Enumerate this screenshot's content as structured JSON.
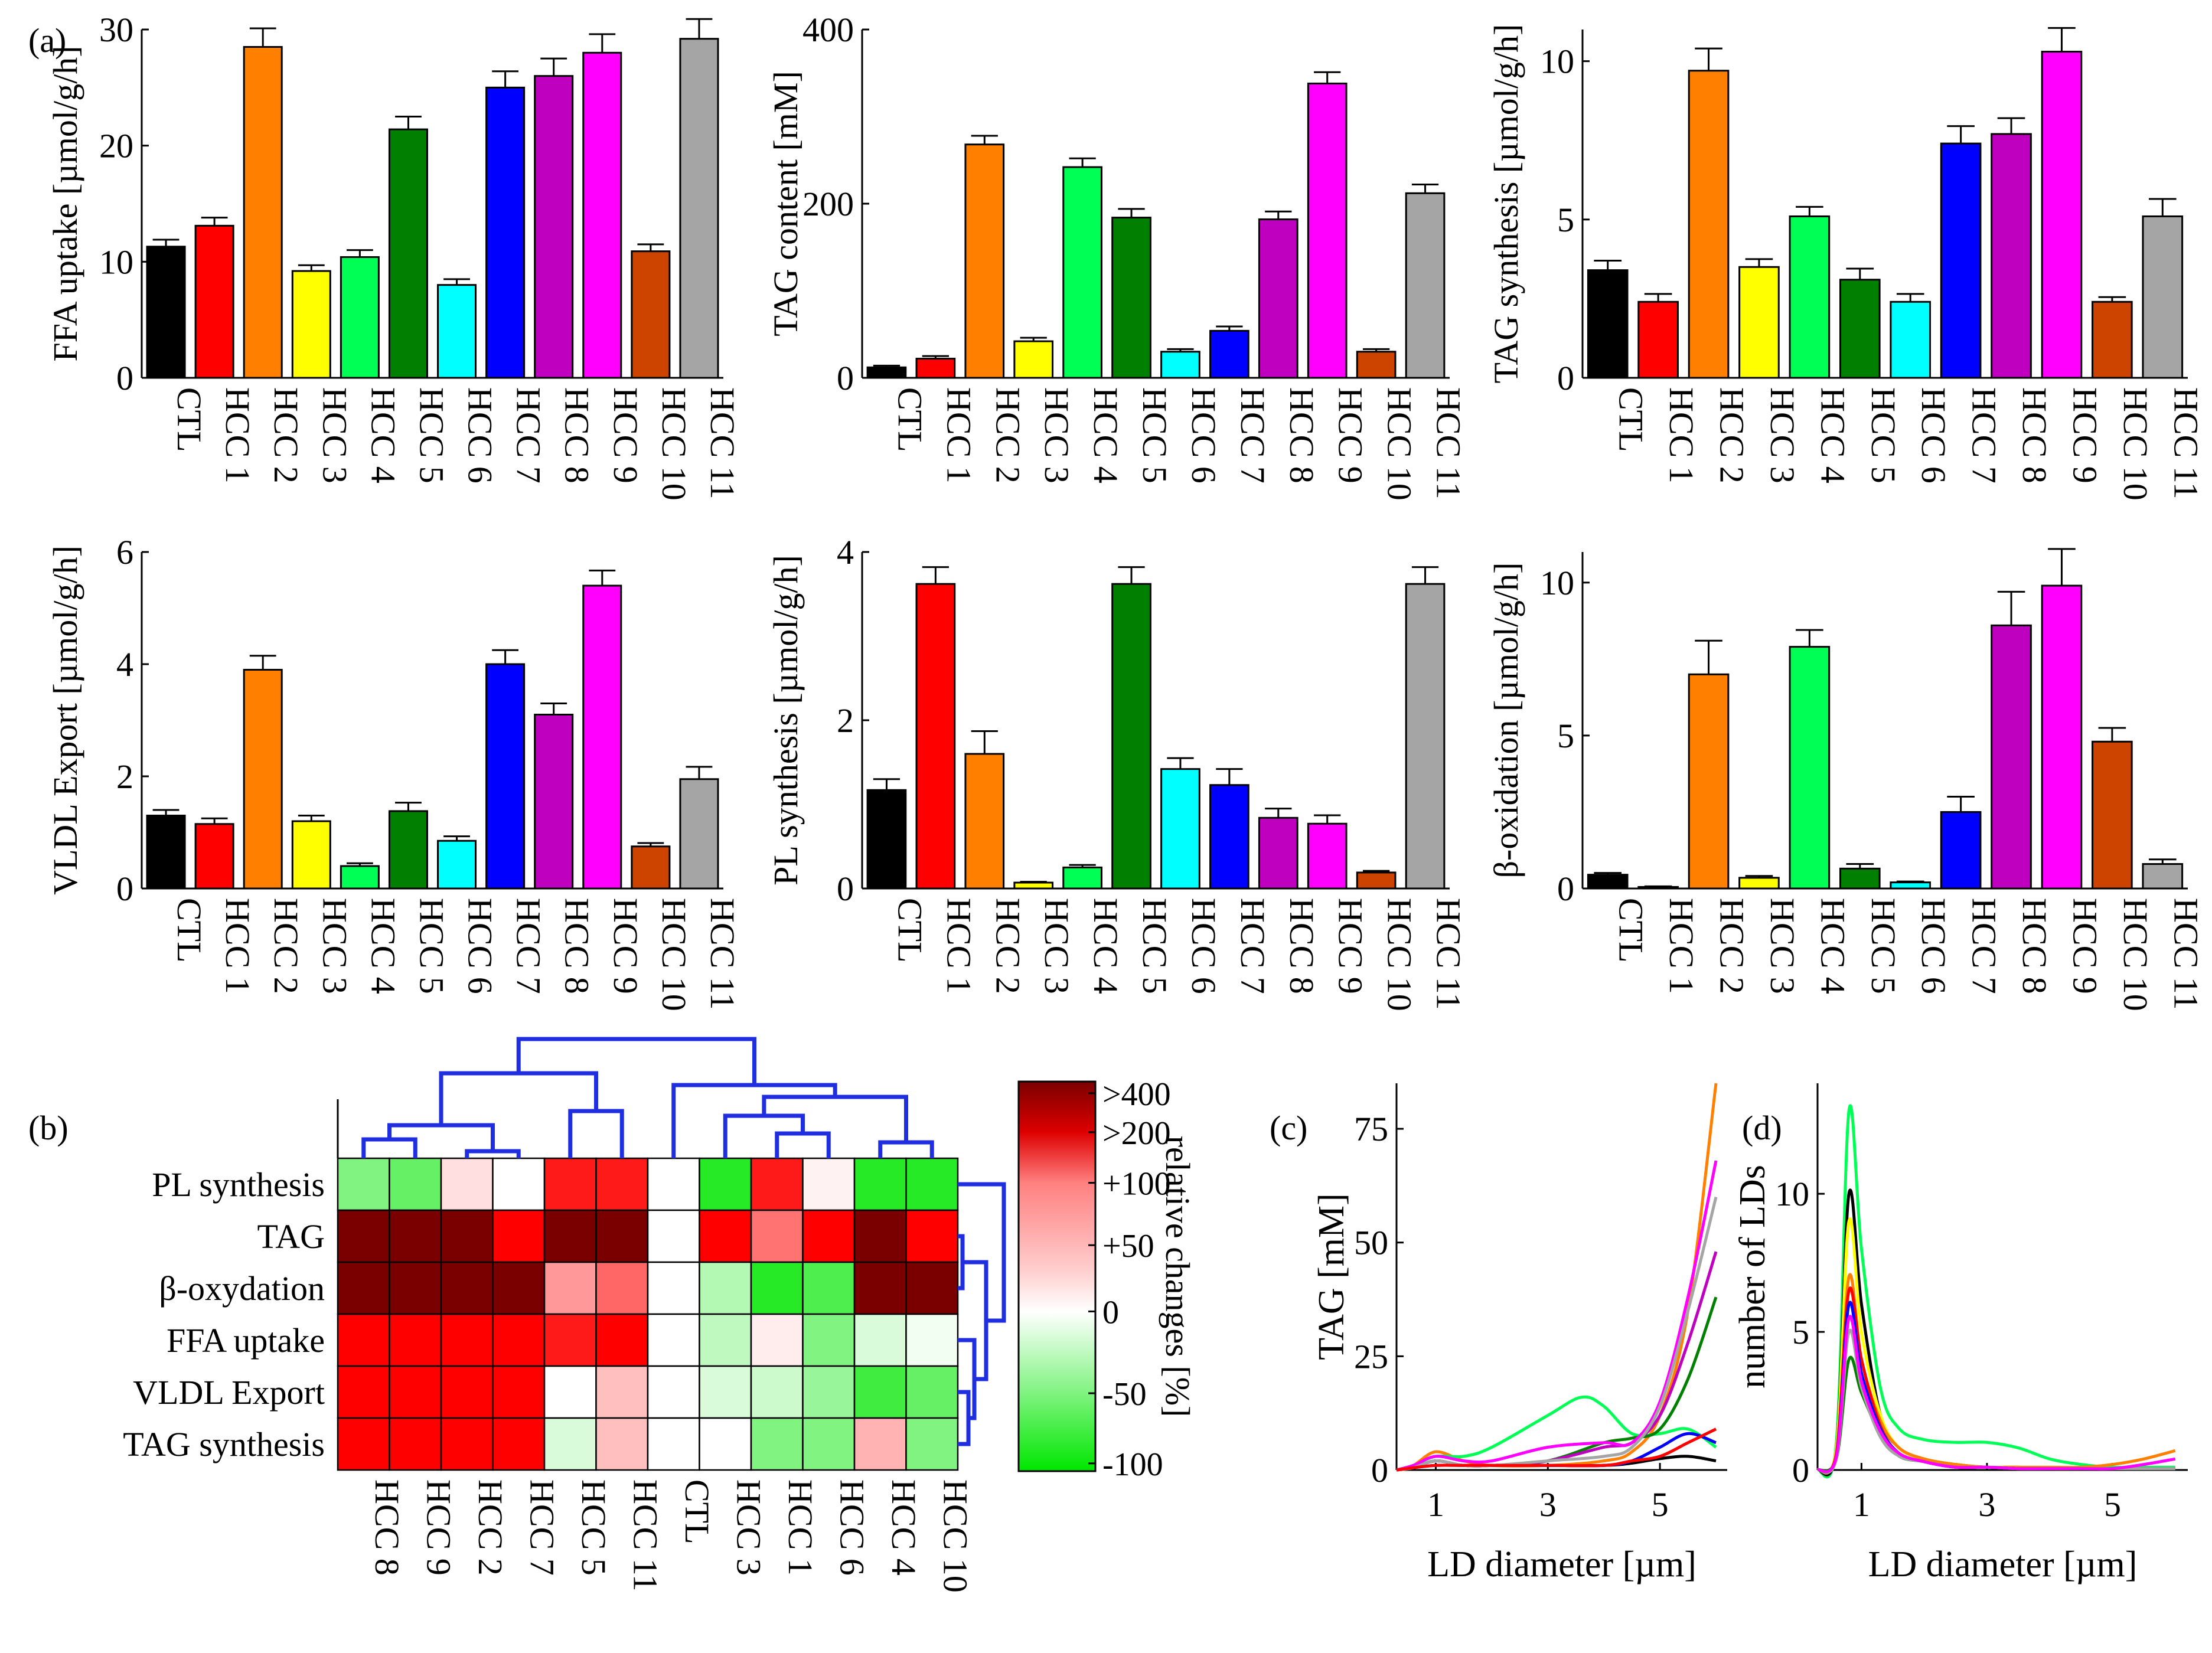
{
  "panel_labels": {
    "a": "(a)",
    "b": "(b)",
    "c": "(c)",
    "d": "(d)"
  },
  "colors": {
    "CTL": "#000000",
    "HCC 1": "#ff0000",
    "HCC 2": "#ff7f00",
    "HCC 3": "#ffff00",
    "HCC 4": "#00ff55",
    "HCC 5": "#007f00",
    "HCC 6": "#00ffff",
    "HCC 7": "#0000ff",
    "HCC 8": "#bf00bf",
    "HCC 9": "#ff00ff",
    "HCC 10": "#cc4400",
    "HCC 11": "#a5a5a5"
  },
  "chart_data": [
    {
      "id": "a1",
      "type": "bar",
      "ylabel": "FFA uptake [µmol/g/h]",
      "categories": [
        "CTL",
        "HCC 1",
        "HCC 2",
        "HCC 3",
        "HCC 4",
        "HCC 5",
        "HCC 6",
        "HCC 7",
        "HCC 8",
        "HCC 9",
        "HCC 10",
        "HCC 11"
      ],
      "values": [
        11.3,
        13.1,
        28.5,
        9.2,
        10.4,
        21.4,
        8.0,
        25.0,
        26.0,
        28.0,
        10.9,
        29.2
      ],
      "errors": [
        0.6,
        0.7,
        1.6,
        0.5,
        0.6,
        1.1,
        0.5,
        1.4,
        1.5,
        1.6,
        0.6,
        1.7
      ],
      "ylim": [
        0,
        30
      ],
      "yticks": [
        0,
        10,
        20,
        30
      ]
    },
    {
      "id": "a2",
      "type": "bar",
      "ylabel": "TAG content [mM]",
      "categories": [
        "CTL",
        "HCC 1",
        "HCC 2",
        "HCC 3",
        "HCC 4",
        "HCC 5",
        "HCC 6",
        "HCC 7",
        "HCC 8",
        "HCC 9",
        "HCC 10",
        "HCC 11"
      ],
      "values": [
        12,
        22,
        268,
        42,
        242,
        184,
        30,
        54,
        182,
        338,
        30,
        212
      ],
      "errors": [
        2,
        3,
        10,
        4,
        10,
        10,
        3,
        5,
        9,
        13,
        3,
        10
      ],
      "ylim": [
        0,
        400
      ],
      "yticks": [
        0,
        200,
        400
      ]
    },
    {
      "id": "a3",
      "type": "bar",
      "ylabel": "TAG synthesis [µmol/g/h]",
      "categories": [
        "CTL",
        "HCC 1",
        "HCC 2",
        "HCC 3",
        "HCC 4",
        "HCC 5",
        "HCC 6",
        "HCC 7",
        "HCC 8",
        "HCC 9",
        "HCC 10",
        "HCC 11"
      ],
      "values": [
        3.4,
        2.4,
        9.7,
        3.5,
        5.1,
        3.1,
        2.4,
        7.4,
        7.7,
        10.3,
        2.4,
        5.1
      ],
      "errors": [
        0.3,
        0.25,
        0.7,
        0.25,
        0.3,
        0.35,
        0.25,
        0.55,
        0.5,
        0.75,
        0.15,
        0.55
      ],
      "ylim": [
        0,
        11
      ],
      "yticks": [
        0,
        5,
        10
      ]
    },
    {
      "id": "a4",
      "type": "bar",
      "ylabel": "VLDL Export [µmol/g/h]",
      "categories": [
        "CTL",
        "HCC 1",
        "HCC 2",
        "HCC 3",
        "HCC 4",
        "HCC 5",
        "HCC 6",
        "HCC 7",
        "HCC 8",
        "HCC 9",
        "HCC 10",
        "HCC 11"
      ],
      "values": [
        1.3,
        1.15,
        3.9,
        1.2,
        0.4,
        1.38,
        0.85,
        4.0,
        3.1,
        5.4,
        0.75,
        1.95
      ],
      "errors": [
        0.1,
        0.1,
        0.25,
        0.1,
        0.05,
        0.15,
        0.08,
        0.25,
        0.2,
        0.27,
        0.06,
        0.22
      ],
      "ylim": [
        0,
        6
      ],
      "yticks": [
        0,
        2,
        4,
        6
      ]
    },
    {
      "id": "a5",
      "type": "bar",
      "ylabel": "PL synthesis [µmol/g/h]",
      "categories": [
        "CTL",
        "HCC 1",
        "HCC 2",
        "HCC 3",
        "HCC 4",
        "HCC 5",
        "HCC 6",
        "HCC 7",
        "HCC 8",
        "HCC 9",
        "HCC 10",
        "HCC 11"
      ],
      "values": [
        1.17,
        3.62,
        1.6,
        0.07,
        0.25,
        3.62,
        1.42,
        1.23,
        0.84,
        0.77,
        0.19,
        3.62
      ],
      "errors": [
        0.13,
        0.2,
        0.27,
        0.01,
        0.03,
        0.2,
        0.13,
        0.19,
        0.11,
        0.1,
        0.02,
        0.2
      ],
      "ylim": [
        0,
        4
      ],
      "yticks": [
        0,
        2,
        4
      ]
    },
    {
      "id": "a6",
      "type": "bar",
      "ylabel": "β-oxidation [µmol/g/h]",
      "categories": [
        "CTL",
        "HCC 1",
        "HCC 2",
        "HCC 3",
        "HCC 4",
        "HCC 5",
        "HCC 6",
        "HCC 7",
        "HCC 8",
        "HCC 9",
        "HCC 10",
        "HCC 11"
      ],
      "values": [
        0.45,
        0.05,
        7.0,
        0.35,
        7.9,
        0.65,
        0.2,
        2.5,
        8.6,
        9.9,
        4.8,
        0.8
      ],
      "errors": [
        0.06,
        0.02,
        1.1,
        0.06,
        0.55,
        0.15,
        0.03,
        0.5,
        1.1,
        1.2,
        0.45,
        0.15
      ],
      "ylim": [
        0,
        11
      ],
      "yticks": [
        0,
        5,
        10
      ]
    },
    {
      "id": "b",
      "type": "heatmap",
      "rows": [
        "PL synthesis",
        "TAG",
        "β-oxydation",
        "FFA uptake",
        "VLDL Export",
        "TAG synthesis"
      ],
      "columns": [
        "HCC 8",
        "HCC 9",
        "HCC 2",
        "HCC 7",
        "HCC 5",
        "HCC 11",
        "CTL",
        "HCC 3",
        "HCC 1",
        "HCC 6",
        "HCC 4",
        "HCC 10"
      ],
      "values_percent_change": [
        [
          -50,
          -60,
          25,
          0,
          180,
          180,
          0,
          -85,
          180,
          10,
          -85,
          -85
        ],
        [
          400,
          400,
          400,
          200,
          400,
          400,
          0,
          200,
          110,
          200,
          400,
          200
        ],
        [
          400,
          400,
          400,
          400,
          80,
          120,
          0,
          -30,
          -85,
          -70,
          400,
          400
        ],
        [
          200,
          200,
          200,
          200,
          180,
          200,
          0,
          -25,
          15,
          -50,
          -15,
          -5
        ],
        [
          200,
          200,
          200,
          200,
          0,
          50,
          0,
          -15,
          -20,
          -40,
          -75,
          -60
        ],
        [
          200,
          200,
          200,
          200,
          -15,
          50,
          0,
          0,
          -50,
          -50,
          60,
          -50
        ]
      ],
      "colorbar": {
        "label": "relative changes [%]",
        "ticks": [
          ">400",
          ">200",
          "+100",
          "+50",
          "0",
          "-50",
          "-100"
        ],
        "low_color": "#00e600",
        "mid_color": "#ffffff",
        "high_color": "#7a0000"
      }
    },
    {
      "id": "c",
      "type": "line",
      "xlabel": "LD diameter [µm]",
      "ylabel": "TAG [mM]",
      "xlim": [
        0.3,
        6.2
      ],
      "ylim": [
        0,
        85
      ],
      "xticks": [
        1,
        3,
        5
      ],
      "yticks": [
        0,
        25,
        50,
        75
      ],
      "series": [
        {
          "name": "CTL",
          "color": "#000000",
          "x": [
            0.3,
            0.6,
            1,
            1.5,
            2,
            3,
            4,
            4.5,
            5,
            5.5,
            6
          ],
          "y": [
            0,
            0.5,
            2,
            1,
            1,
            1,
            1,
            1.5,
            2.5,
            3,
            2
          ]
        },
        {
          "name": "HCC 2",
          "color": "#ff7f00",
          "x": [
            0.3,
            0.6,
            1,
            1.5,
            2,
            3,
            4,
            4.5,
            5,
            5.5,
            6
          ],
          "y": [
            0,
            1,
            4,
            2,
            1,
            1,
            2,
            4,
            12,
            35,
            85
          ]
        },
        {
          "name": "HCC 4",
          "color": "#00ff55",
          "x": [
            0.3,
            0.6,
            1,
            1.5,
            2,
            3,
            3.6,
            4,
            4.5,
            5,
            5.5,
            6
          ],
          "y": [
            0,
            1,
            3,
            3,
            5,
            12,
            16,
            14,
            8,
            8,
            9,
            5
          ]
        },
        {
          "name": "HCC 5",
          "color": "#007f00",
          "x": [
            0.3,
            0.6,
            1,
            1.5,
            2,
            3,
            4,
            4.5,
            5,
            5.5,
            6
          ],
          "y": [
            0,
            0.5,
            2,
            1,
            1,
            2,
            6,
            7,
            9,
            20,
            38
          ]
        },
        {
          "name": "HCC 7",
          "color": "#0000ff",
          "x": [
            0.3,
            0.6,
            1,
            1.5,
            2,
            3,
            4,
            4.5,
            5,
            5.5,
            6
          ],
          "y": [
            0,
            0.5,
            1,
            1,
            1,
            1,
            1,
            2,
            5,
            8,
            6
          ]
        },
        {
          "name": "HCC 8",
          "color": "#bf00bf",
          "x": [
            0.3,
            0.6,
            1,
            1.5,
            2,
            3,
            4,
            4.5,
            5,
            5.5,
            6
          ],
          "y": [
            0,
            0.5,
            2,
            1,
            1,
            2,
            5,
            6,
            12,
            28,
            48
          ]
        },
        {
          "name": "HCC 9",
          "color": "#ff00ff",
          "x": [
            0.3,
            0.6,
            1,
            1.5,
            2,
            3,
            4,
            4.5,
            5,
            5.5,
            6
          ],
          "y": [
            0,
            1,
            3,
            2,
            2,
            5,
            6,
            6,
            15,
            38,
            68
          ]
        },
        {
          "name": "HCC 11",
          "color": "#a5a5a5",
          "x": [
            0.3,
            0.6,
            1,
            1.5,
            2,
            3,
            4,
            4.5,
            5,
            5.5,
            6
          ],
          "y": [
            0,
            0.5,
            2,
            1,
            1,
            2,
            3,
            5,
            14,
            35,
            60
          ]
        },
        {
          "name": "HCC 1",
          "color": "#ff0000",
          "x": [
            0.3,
            0.6,
            1,
            1.5,
            2,
            3,
            4,
            4.5,
            5,
            5.5,
            6
          ],
          "y": [
            0,
            0.5,
            1,
            1,
            1,
            1,
            1,
            2,
            3,
            6,
            9
          ]
        }
      ]
    },
    {
      "id": "d",
      "type": "line",
      "xlabel": "LD diameter [µm]",
      "ylabel": "number of LDs",
      "xlim": [
        0.3,
        6.2
      ],
      "ylim": [
        0,
        14
      ],
      "xticks": [
        1,
        3,
        5
      ],
      "yticks": [
        0,
        5,
        10
      ],
      "series": [
        {
          "name": "HCC 4",
          "color": "#00ff55",
          "x": [
            0.3,
            0.6,
            0.8,
            1,
            1.3,
            1.6,
            2,
            2.5,
            3,
            3.5,
            4,
            4.5,
            5,
            5.5,
            6
          ],
          "y": [
            0,
            1,
            13,
            8,
            3,
            1.5,
            1.1,
            1,
            1,
            0.8,
            0.4,
            0.2,
            0.1,
            0.1,
            0.1
          ]
        },
        {
          "name": "CTL",
          "color": "#000000",
          "x": [
            0.3,
            0.6,
            0.8,
            1,
            1.3,
            1.6,
            2,
            2.5,
            3,
            3.5,
            4,
            4.5,
            5,
            5.5,
            6
          ],
          "y": [
            0,
            0.8,
            10,
            6,
            2,
            0.8,
            0.4,
            0.2,
            0.1,
            0.1,
            0.05,
            0.05,
            0.05,
            0.05,
            0.05
          ]
        },
        {
          "name": "HCC 3",
          "color": "#ffff00",
          "x": [
            0.3,
            0.6,
            0.8,
            1,
            1.3,
            1.6,
            2,
            2.5,
            3,
            3.5,
            4,
            4.5,
            5,
            5.5,
            6
          ],
          "y": [
            0,
            0.8,
            9,
            5,
            2,
            0.8,
            0.4,
            0.2,
            0.1,
            0.1,
            0.05,
            0.05,
            0.05,
            0.05,
            0.05
          ]
        },
        {
          "name": "HCC 2",
          "color": "#ff7f00",
          "x": [
            0.3,
            0.6,
            0.8,
            1,
            1.3,
            1.6,
            2,
            2.5,
            3,
            3.5,
            4,
            4.5,
            5,
            5.5,
            6
          ],
          "y": [
            0,
            0.6,
            7,
            4,
            1.8,
            0.8,
            0.4,
            0.2,
            0.1,
            0.1,
            0.1,
            0.1,
            0.2,
            0.4,
            0.7
          ]
        },
        {
          "name": "HCC 1",
          "color": "#ff0000",
          "x": [
            0.3,
            0.6,
            0.8,
            1,
            1.3,
            1.6,
            2,
            2.5,
            3,
            3.5,
            4,
            4.5,
            5,
            5.5,
            6
          ],
          "y": [
            0,
            0.6,
            6.5,
            4,
            1.6,
            0.6,
            0.3,
            0.1,
            0.1,
            0.05,
            0.05,
            0.05,
            0.05,
            0.05,
            0.05
          ]
        },
        {
          "name": "HCC 7",
          "color": "#0000ff",
          "x": [
            0.3,
            0.6,
            0.8,
            1,
            1.3,
            1.6,
            2,
            2.5,
            3,
            3.5,
            4,
            4.5,
            5,
            5.5,
            6
          ],
          "y": [
            0,
            0.5,
            6,
            3.5,
            1.5,
            0.6,
            0.3,
            0.1,
            0.1,
            0.05,
            0.05,
            0.05,
            0.05,
            0.05,
            0.05
          ]
        },
        {
          "name": "HCC 5",
          "color": "#007f00",
          "x": [
            0.3,
            0.6,
            0.8,
            1,
            1.3,
            1.6,
            2,
            2.5,
            3,
            3.5,
            4,
            4.5,
            5,
            5.5,
            6
          ],
          "y": [
            0,
            0.4,
            4,
            2.8,
            1.3,
            0.5,
            0.3,
            0.1,
            0.1,
            0.05,
            0.05,
            0.05,
            0.05,
            0.05,
            0.05
          ]
        },
        {
          "name": "HCC 11",
          "color": "#a5a5a5",
          "x": [
            0.3,
            0.6,
            0.8,
            1,
            1.3,
            1.6,
            2,
            2.5,
            3,
            3.5,
            4,
            4.5,
            5,
            5.5,
            6
          ],
          "y": [
            0,
            0.4,
            5,
            3,
            1.2,
            0.5,
            0.3,
            0.1,
            0.1,
            0.05,
            0.05,
            0.05,
            0.05,
            0.05,
            0.05
          ]
        },
        {
          "name": "HCC 9",
          "color": "#ff00ff",
          "x": [
            0.3,
            0.6,
            0.8,
            1,
            1.3,
            1.6,
            2,
            2.5,
            3,
            3.5,
            4,
            4.5,
            5,
            5.5,
            6
          ],
          "y": [
            0,
            0.5,
            5.5,
            3.2,
            1.4,
            0.6,
            0.3,
            0.1,
            0.1,
            0.05,
            0.05,
            0.05,
            0.05,
            0.2,
            0.4
          ]
        }
      ]
    }
  ]
}
